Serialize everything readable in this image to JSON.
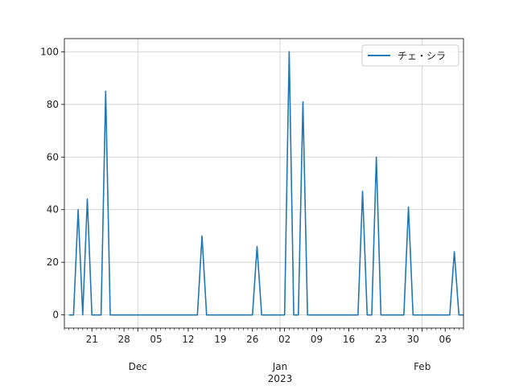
{
  "chart_data": {
    "type": "line",
    "title": "",
    "xlabel": "",
    "ylabel": "",
    "x_start": "2022-11-15",
    "x_end": "2023-02-10",
    "ylim": [
      -5,
      105
    ],
    "grid": true,
    "legend_position": "top-right",
    "y_ticks": [
      0,
      20,
      40,
      60,
      80,
      100
    ],
    "x_tick_labels": [
      {
        "date": "2022-11-21",
        "label": "21"
      },
      {
        "date": "2022-11-28",
        "label": "28"
      },
      {
        "date": "2022-12-05",
        "label": "05"
      },
      {
        "date": "2022-12-12",
        "label": "12"
      },
      {
        "date": "2022-12-19",
        "label": "19"
      },
      {
        "date": "2022-12-26",
        "label": "26"
      },
      {
        "date": "2023-01-02",
        "label": "02"
      },
      {
        "date": "2023-01-09",
        "label": "09"
      },
      {
        "date": "2023-01-16",
        "label": "16"
      },
      {
        "date": "2023-01-23",
        "label": "23"
      },
      {
        "date": "2023-01-30",
        "label": "30"
      },
      {
        "date": "2023-02-06",
        "label": "06"
      }
    ],
    "month_labels": [
      {
        "date": "2022-12-01",
        "label": "Dec",
        "year": ""
      },
      {
        "date": "2023-01-01",
        "label": "Jan",
        "year": "2023"
      },
      {
        "date": "2023-02-01",
        "label": "Feb",
        "year": ""
      }
    ],
    "series": [
      {
        "name": "チェ・シラ",
        "color": "#1f77b4",
        "points": [
          {
            "x": "2022-11-16",
            "y": 0
          },
          {
            "x": "2022-11-17",
            "y": 0
          },
          {
            "x": "2022-11-18",
            "y": 40
          },
          {
            "x": "2022-11-19",
            "y": 0
          },
          {
            "x": "2022-11-20",
            "y": 44
          },
          {
            "x": "2022-11-21",
            "y": 0
          },
          {
            "x": "2022-11-22",
            "y": 0
          },
          {
            "x": "2022-11-23",
            "y": 0
          },
          {
            "x": "2022-11-24",
            "y": 85
          },
          {
            "x": "2022-11-25",
            "y": 0
          },
          {
            "x": "2022-12-14",
            "y": 0
          },
          {
            "x": "2022-12-15",
            "y": 30
          },
          {
            "x": "2022-12-16",
            "y": 0
          },
          {
            "x": "2022-12-26",
            "y": 0
          },
          {
            "x": "2022-12-27",
            "y": 26
          },
          {
            "x": "2022-12-28",
            "y": 0
          },
          {
            "x": "2023-01-02",
            "y": 0
          },
          {
            "x": "2023-01-03",
            "y": 100
          },
          {
            "x": "2023-01-04",
            "y": 0
          },
          {
            "x": "2023-01-05",
            "y": 0
          },
          {
            "x": "2023-01-06",
            "y": 81
          },
          {
            "x": "2023-01-07",
            "y": 0
          },
          {
            "x": "2023-01-18",
            "y": 0
          },
          {
            "x": "2023-01-19",
            "y": 47
          },
          {
            "x": "2023-01-20",
            "y": 0
          },
          {
            "x": "2023-01-21",
            "y": 0
          },
          {
            "x": "2023-01-22",
            "y": 60
          },
          {
            "x": "2023-01-23",
            "y": 0
          },
          {
            "x": "2023-01-28",
            "y": 0
          },
          {
            "x": "2023-01-29",
            "y": 41
          },
          {
            "x": "2023-01-30",
            "y": 0
          },
          {
            "x": "2023-02-07",
            "y": 0
          },
          {
            "x": "2023-02-08",
            "y": 24
          },
          {
            "x": "2023-02-09",
            "y": 0
          },
          {
            "x": "2023-02-10",
            "y": 0
          }
        ]
      }
    ]
  }
}
